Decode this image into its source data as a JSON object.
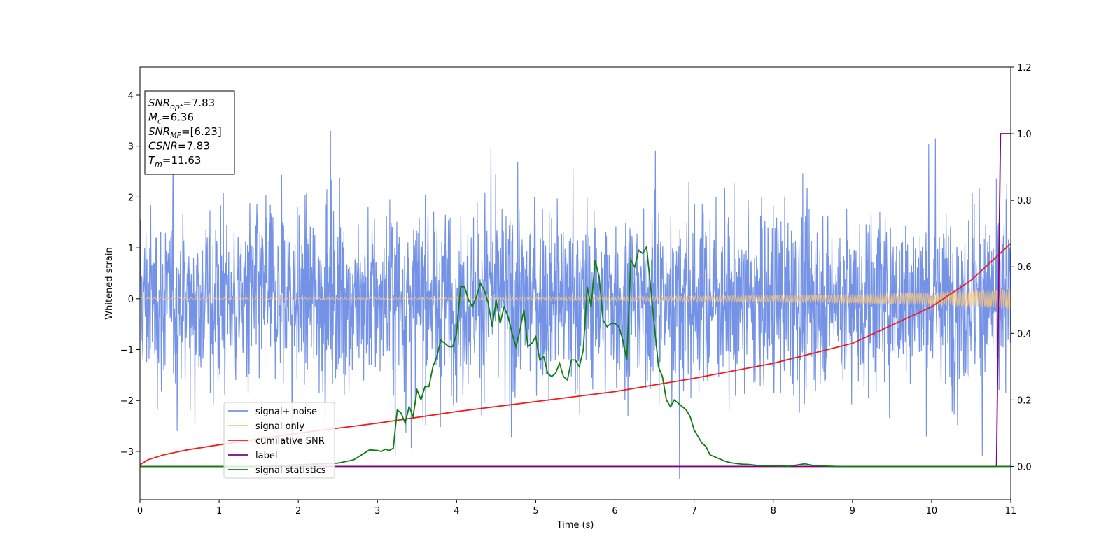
{
  "chart_data": {
    "type": "line",
    "xlabel": "Time (s)",
    "ylabel": "Whitened strain",
    "xlim": [
      0,
      11
    ],
    "ylim_left": [
      -3.95,
      4.55
    ],
    "ylim_right": [
      -0.1,
      1.2
    ],
    "x_ticks": [
      "0",
      "1",
      "2",
      "3",
      "4",
      "5",
      "6",
      "7",
      "8",
      "9",
      "10",
      "11"
    ],
    "y_ticks_left": [
      "−3",
      "−2",
      "−1",
      "0",
      "1",
      "2",
      "3",
      "4"
    ],
    "y_ticks_right": [
      "0.0",
      "0.2",
      "0.4",
      "0.6",
      "0.8",
      "1.0",
      "1.2"
    ],
    "grid": false,
    "legend_position": "lower-left",
    "info_box": [
      {
        "sym": "SNR",
        "sub": "opt",
        "val": "=7.83"
      },
      {
        "sym": "M",
        "sub": "c",
        "val": "=6.36"
      },
      {
        "sym": "SNR",
        "sub": "MF",
        "val": "=[6.23]"
      },
      {
        "sym": "CSNR",
        "sub": "",
        "val": "=7.83"
      },
      {
        "sym": "T",
        "sub": "m",
        "val": "=11.63"
      }
    ],
    "series": [
      {
        "name": "signal+ noise",
        "axis": "left",
        "color": "#7593e6",
        "noise_amplitude": 1.4,
        "approx_max": 3.3,
        "approx_min": -3.55
      },
      {
        "name": "signal only",
        "axis": "left",
        "color": "#f7c77e",
        "chirp_envelope": {
          "x": [
            0,
            4,
            7,
            9,
            10,
            11
          ],
          "amplitude": [
            0.02,
            0.025,
            0.05,
            0.09,
            0.13,
            0.2
          ]
        }
      },
      {
        "name": "cumilative SNR",
        "axis": "right",
        "color": "#ee1c1c",
        "x": [
          0,
          0.1,
          0.3,
          0.6,
          1,
          2,
          3,
          4,
          5,
          6,
          7,
          8,
          9,
          10,
          10.5,
          11
        ],
        "y": [
          0.005,
          0.02,
          0.035,
          0.05,
          0.065,
          0.1,
          0.13,
          0.165,
          0.195,
          0.225,
          0.265,
          0.31,
          0.37,
          0.48,
          0.56,
          0.67
        ]
      },
      {
        "name": "label",
        "axis": "right",
        "color": "#800080",
        "x": [
          0,
          10.82,
          10.87,
          11
        ],
        "y": [
          0,
          0,
          1,
          1
        ]
      },
      {
        "name": "signal statistics",
        "axis": "right",
        "color": "#0f7d0f",
        "x": [
          0,
          1.5,
          2.5,
          2.7,
          2.8,
          2.9,
          3.0,
          3.05,
          3.1,
          3.15,
          3.2,
          3.25,
          3.3,
          3.35,
          3.4,
          3.45,
          3.5,
          3.55,
          3.6,
          3.65,
          3.7,
          3.75,
          3.8,
          3.85,
          3.9,
          3.95,
          4.0,
          4.05,
          4.1,
          4.15,
          4.2,
          4.25,
          4.3,
          4.35,
          4.4,
          4.45,
          4.5,
          4.55,
          4.6,
          4.65,
          4.7,
          4.75,
          4.8,
          4.85,
          4.9,
          4.95,
          5.0,
          5.05,
          5.1,
          5.15,
          5.2,
          5.25,
          5.3,
          5.35,
          5.4,
          5.45,
          5.5,
          5.55,
          5.6,
          5.65,
          5.7,
          5.75,
          5.8,
          5.85,
          5.9,
          5.95,
          6.0,
          6.05,
          6.1,
          6.15,
          6.2,
          6.25,
          6.3,
          6.35,
          6.4,
          6.45,
          6.5,
          6.55,
          6.6,
          6.65,
          6.7,
          6.75,
          6.8,
          6.85,
          6.9,
          6.95,
          7.0,
          7.05,
          7.1,
          7.15,
          7.2,
          7.25,
          7.3,
          7.35,
          7.4,
          7.45,
          7.5,
          7.6,
          7.7,
          7.8,
          8.0,
          8.2,
          8.4,
          8.5,
          8.6,
          8.8,
          11
        ],
        "y": [
          0,
          0,
          0.01,
          0.02,
          0.035,
          0.05,
          0.048,
          0.045,
          0.052,
          0.048,
          0.055,
          0.17,
          0.16,
          0.13,
          0.18,
          0.15,
          0.23,
          0.2,
          0.24,
          0.24,
          0.3,
          0.33,
          0.38,
          0.37,
          0.36,
          0.36,
          0.4,
          0.54,
          0.54,
          0.5,
          0.48,
          0.51,
          0.55,
          0.53,
          0.49,
          0.42,
          0.5,
          0.43,
          0.48,
          0.45,
          0.4,
          0.36,
          0.41,
          0.47,
          0.36,
          0.37,
          0.39,
          0.32,
          0.33,
          0.28,
          0.27,
          0.28,
          0.31,
          0.27,
          0.26,
          0.32,
          0.32,
          0.3,
          0.35,
          0.54,
          0.48,
          0.62,
          0.57,
          0.44,
          0.42,
          0.43,
          0.43,
          0.42,
          0.38,
          0.32,
          0.62,
          0.6,
          0.65,
          0.64,
          0.66,
          0.54,
          0.42,
          0.3,
          0.27,
          0.2,
          0.18,
          0.2,
          0.19,
          0.18,
          0.17,
          0.15,
          0.11,
          0.09,
          0.07,
          0.06,
          0.035,
          0.03,
          0.025,
          0.02,
          0.015,
          0.012,
          0.01,
          0.007,
          0.006,
          0.003,
          0.002,
          0.001,
          0.008,
          0.003,
          0.002,
          0,
          0
        ]
      }
    ]
  }
}
